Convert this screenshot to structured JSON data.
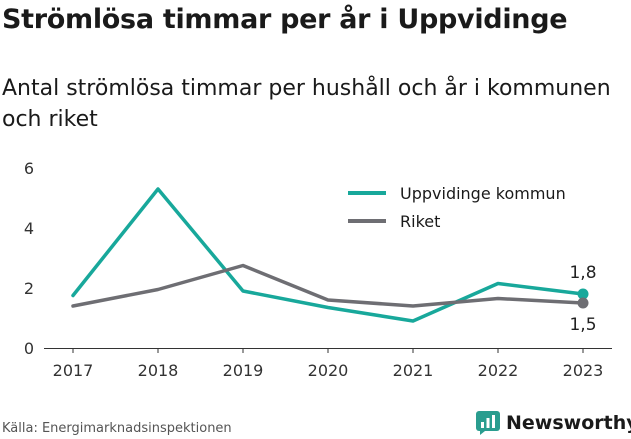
{
  "header": {
    "title": "Strömlösa timmar per år i Uppvidinge",
    "subtitle": "Antal strömlösa timmar per hushåll och år i kommunen och riket"
  },
  "footer": {
    "source": "Källa: Energimarknadsinspektionen",
    "brand": "Newsworthy"
  },
  "colors": {
    "brand": "#2a9d8f",
    "kommun": "#18a89b",
    "riket": "#6e6e73",
    "axis": "#333333",
    "tick_label": "#333333"
  },
  "chart_data": {
    "type": "line",
    "categories": [
      "2017",
      "2018",
      "2019",
      "2020",
      "2021",
      "2022",
      "2023"
    ],
    "series": [
      {
        "name": "Uppvidinge kommun",
        "values": [
          1.75,
          5.3,
          1.9,
          1.35,
          0.9,
          2.15,
          1.8
        ],
        "color": "#18a89b",
        "end_label": "1,8"
      },
      {
        "name": "Riket",
        "values": [
          1.4,
          1.95,
          2.75,
          1.6,
          1.4,
          1.65,
          1.5
        ],
        "color": "#6e6e73",
        "end_label": "1,5"
      }
    ],
    "ylim": [
      0,
      6
    ],
    "yticks": [
      0,
      2,
      4,
      6
    ],
    "ytick_labels": [
      "0",
      "2",
      "4",
      "6"
    ],
    "xlabel": "",
    "ylabel": "",
    "grid": false,
    "legend": "top-right"
  }
}
